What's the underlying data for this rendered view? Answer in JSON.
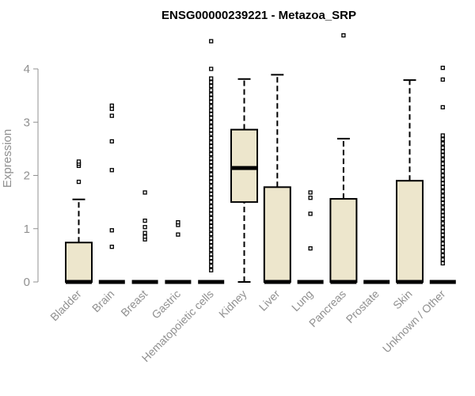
{
  "chart_data": {
    "type": "box",
    "title": "ENSG00000239221 - Metazoa_SRP",
    "ylabel": "Expression",
    "xlabel": "",
    "ylim": [
      0,
      4.6
    ],
    "yticks": [
      0,
      1,
      2,
      3,
      4
    ],
    "grid": false,
    "colors": {
      "box_fill": "#ede6cc",
      "stroke": "#000000",
      "axis": "#909090"
    },
    "categories": [
      "Bladder",
      "Brain",
      "Breast",
      "Gastric",
      "Hematopoietic cells",
      "Kidney",
      "Liver",
      "Lung",
      "Pancreas",
      "Prostate",
      "Skin",
      "Unknown / Other"
    ],
    "boxes": [
      {
        "category": "Bladder",
        "min": 0,
        "q1": 0,
        "median": 0,
        "q3": 0.74,
        "max": 1.55,
        "outliers": [
          1.88,
          2.18,
          2.22,
          2.26
        ]
      },
      {
        "category": "Brain",
        "min": 0,
        "q1": 0,
        "median": 0,
        "q3": 0,
        "max": 0,
        "outliers": [
          0.66,
          0.97,
          2.1,
          2.64,
          3.12,
          3.25,
          3.31
        ]
      },
      {
        "category": "Breast",
        "min": 0,
        "q1": 0,
        "median": 0,
        "q3": 0,
        "max": 0,
        "outliers": [
          0.8,
          0.85,
          0.92,
          1.03,
          1.15,
          1.68
        ]
      },
      {
        "category": "Gastric",
        "min": 0,
        "q1": 0,
        "median": 0,
        "q3": 0,
        "max": 0,
        "outliers": [
          0.89,
          1.07,
          1.12
        ]
      },
      {
        "category": "Hematopoietic cells",
        "min": 0,
        "q1": 0,
        "median": 0,
        "q3": 0,
        "max": 0,
        "outliers": [
          0.22,
          0.3,
          0.38,
          0.45,
          0.52,
          0.6,
          0.68,
          0.75,
          0.82,
          0.9,
          0.98,
          1.05,
          1.12,
          1.2,
          1.28,
          1.35,
          1.42,
          1.5,
          1.58,
          1.65,
          1.72,
          1.8,
          1.88,
          1.95,
          2.02,
          2.1,
          2.18,
          2.25,
          2.32,
          2.4,
          2.48,
          2.55,
          2.62,
          2.7,
          2.78,
          2.85,
          2.92,
          3.0,
          3.08,
          3.15,
          3.22,
          3.3,
          3.38,
          3.45,
          3.52,
          3.6,
          3.68,
          3.75,
          3.82,
          4.0,
          4.52
        ]
      },
      {
        "category": "Kidney",
        "min": 0,
        "q1": 1.5,
        "median": 2.14,
        "q3": 2.86,
        "max": 3.81,
        "outliers": []
      },
      {
        "category": "Liver",
        "min": 0,
        "q1": 0,
        "median": 0,
        "q3": 1.78,
        "max": 3.89,
        "outliers": []
      },
      {
        "category": "Lung",
        "min": 0,
        "q1": 0,
        "median": 0,
        "q3": 0,
        "max": 0,
        "outliers": [
          0.63,
          1.28,
          1.58,
          1.68
        ]
      },
      {
        "category": "Pancreas",
        "min": 0,
        "q1": 0,
        "median": 0,
        "q3": 1.56,
        "max": 2.69,
        "outliers": [
          4.63
        ]
      },
      {
        "category": "Prostate",
        "min": 0,
        "q1": 0,
        "median": 0,
        "q3": 0,
        "max": 0,
        "outliers": []
      },
      {
        "category": "Skin",
        "min": 0,
        "q1": 0,
        "median": 0,
        "q3": 1.9,
        "max": 3.79,
        "outliers": []
      },
      {
        "category": "Unknown / Other",
        "min": 0,
        "q1": 0,
        "median": 0,
        "q3": 0,
        "max": 0,
        "outliers": [
          0.35,
          0.42,
          0.5,
          0.58,
          0.65,
          0.72,
          0.8,
          0.88,
          0.95,
          1.02,
          1.1,
          1.18,
          1.25,
          1.32,
          1.4,
          1.48,
          1.55,
          1.62,
          1.7,
          1.78,
          1.85,
          1.92,
          2.0,
          2.08,
          2.15,
          2.22,
          2.3,
          2.38,
          2.45,
          2.52,
          2.6,
          2.68,
          2.75,
          3.28,
          3.8,
          4.02
        ]
      }
    ]
  }
}
